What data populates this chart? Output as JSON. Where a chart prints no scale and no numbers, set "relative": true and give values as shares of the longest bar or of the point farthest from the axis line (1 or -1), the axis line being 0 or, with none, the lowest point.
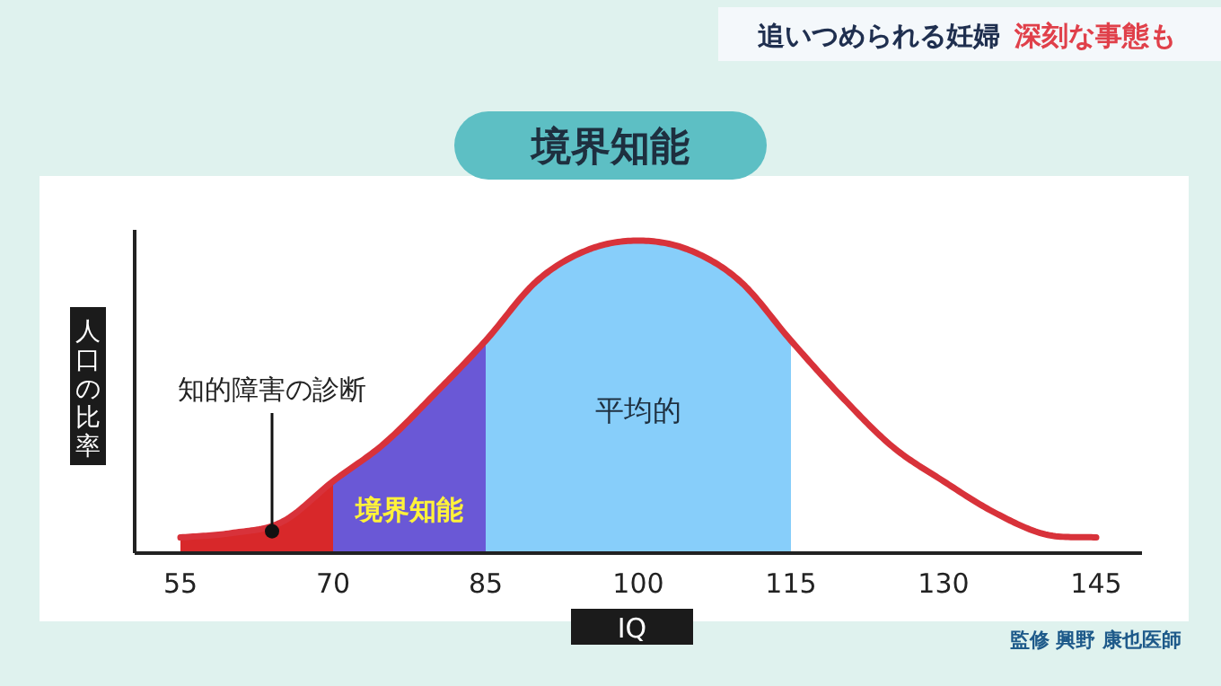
{
  "chart_data": {
    "type": "line",
    "title": "境界知能",
    "xlabel": "IQ",
    "ylabel": "人口の比率",
    "annotations": [
      "追いつめられる妊婦",
      "深刻な事態も",
      "監修 興野 康也医師",
      {
        "text": "知的障害の診断",
        "x": 64,
        "y": 0.07
      },
      "境界知能",
      "平均的"
    ],
    "relative": true,
    "x": [
      55,
      60,
      65,
      70,
      75,
      80,
      85,
      90,
      95,
      100,
      105,
      110,
      115,
      120,
      125,
      130,
      135,
      140,
      145
    ],
    "series": [
      {
        "type": "area",
        "color": "#d8282a",
        "x": [
          55,
          60,
          65,
          70
        ],
        "values": [
          0.05,
          0.064,
          0.1,
          0.23
        ]
      },
      {
        "type": "area",
        "color": "#6a58d6",
        "x": [
          70,
          75,
          80,
          85
        ],
        "values": [
          0.23,
          0.35,
          0.51,
          0.68
        ]
      },
      {
        "type": "area",
        "color": "#87cefa",
        "x": [
          85,
          90,
          95,
          100,
          105,
          110,
          115
        ],
        "values": [
          0.68,
          0.87,
          0.97,
          1.0,
          0.97,
          0.87,
          0.68
        ]
      },
      {
        "color": "#d8323a",
        "values": [
          0.05,
          0.064,
          0.1,
          0.23,
          0.35,
          0.51,
          0.68,
          0.87,
          0.97,
          1.0,
          0.97,
          0.87,
          0.68,
          0.5,
          0.34,
          0.23,
          0.13,
          0.06,
          0.05
        ]
      }
    ],
    "xlim": [
      50.5,
      149.5
    ],
    "xticks": [
      55,
      70,
      85,
      100,
      115,
      130,
      145
    ]
  }
}
